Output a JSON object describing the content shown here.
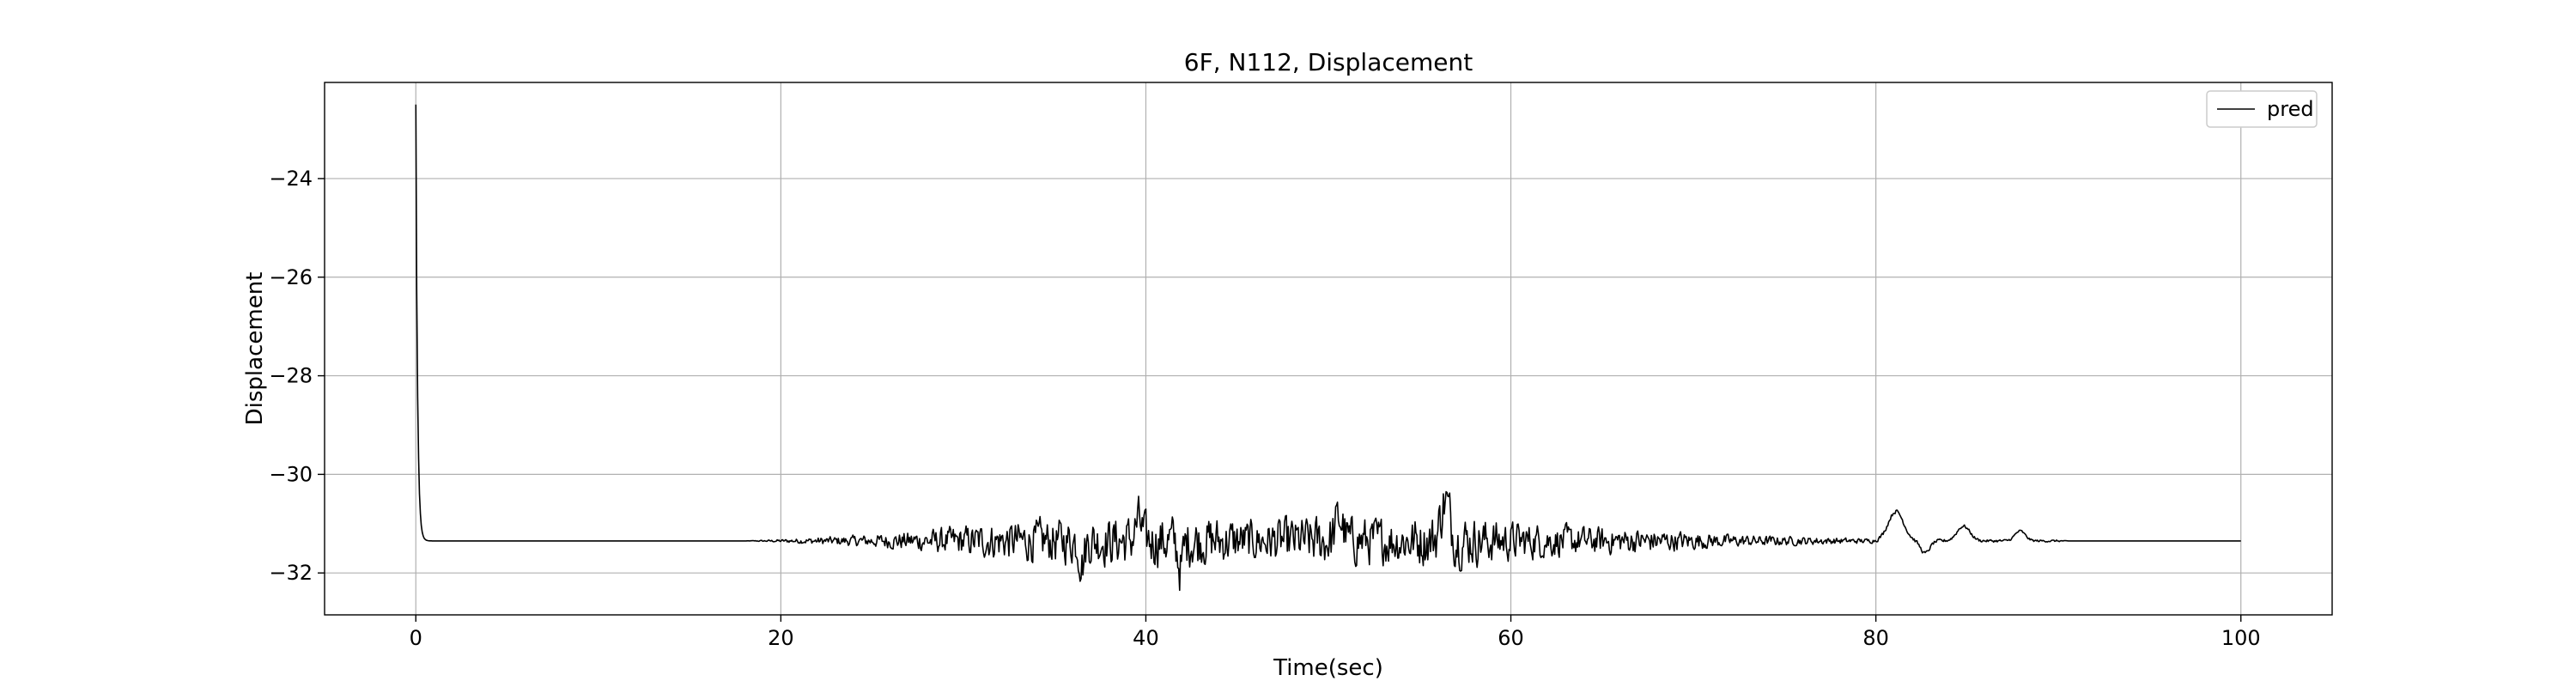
{
  "chart_data": {
    "type": "line",
    "title": "6F, N112, Displacement",
    "xlabel": "Time(sec)",
    "ylabel": "Displacement",
    "xlim": [
      -5,
      105
    ],
    "ylim": [
      -32.85,
      -22.05
    ],
    "x_ticks": [
      0,
      20,
      40,
      60,
      80,
      100
    ],
    "x_tick_labels": [
      "0",
      "20",
      "40",
      "60",
      "80",
      "100"
    ],
    "y_ticks": [
      -24,
      -26,
      -28,
      -30,
      -32
    ],
    "y_tick_labels": [
      "−24",
      "−26",
      "−28",
      "−30",
      "−32"
    ],
    "grid": true,
    "legend_position": "top-right",
    "series": [
      {
        "name": "pred",
        "color": "#000000",
        "x_start": 0,
        "x_end": 100,
        "dt": 0.05,
        "initial_value": -22.5,
        "baseline": -31.35,
        "decay_time_constant": 0.09,
        "amplitude_envelope": [
          [
            0,
            0
          ],
          [
            18,
            0
          ],
          [
            20,
            0.03
          ],
          [
            22,
            0.07
          ],
          [
            25,
            0.12
          ],
          [
            28,
            0.22
          ],
          [
            31,
            0.33
          ],
          [
            34,
            0.42
          ],
          [
            38,
            0.48
          ],
          [
            42,
            0.52
          ],
          [
            46,
            0.4
          ],
          [
            50,
            0.5
          ],
          [
            54,
            0.45
          ],
          [
            56.5,
            0.55
          ],
          [
            60,
            0.38
          ],
          [
            64,
            0.28
          ],
          [
            68,
            0.22
          ],
          [
            72,
            0.12
          ],
          [
            76,
            0.08
          ],
          [
            79,
            0.05
          ],
          [
            80.5,
            0.04
          ],
          [
            90,
            0.02
          ],
          [
            90.5,
            0
          ],
          [
            100,
            0
          ]
        ],
        "key_points": [
          [
            0,
            -22.5
          ],
          [
            0.5,
            -31.4
          ],
          [
            20,
            -31.35
          ],
          [
            36.5,
            -32.2
          ],
          [
            41.9,
            -32.3
          ],
          [
            56.4,
            -30.12
          ],
          [
            81.1,
            -30.7
          ],
          [
            82.7,
            -31.6
          ],
          [
            84.8,
            -31.0
          ],
          [
            87.9,
            -31.1
          ],
          [
            90,
            -31.35
          ],
          [
            100,
            -31.35
          ]
        ],
        "bumps": [
          {
            "center": 56.4,
            "height": 0.8,
            "width": 0.35
          },
          {
            "center": 50.6,
            "height": 0.45,
            "width": 0.3
          },
          {
            "center": 39.6,
            "height": 0.4,
            "width": 0.25
          },
          {
            "center": 41.9,
            "height": -0.55,
            "width": 0.2
          },
          {
            "center": 36.5,
            "height": -0.45,
            "width": 0.2
          },
          {
            "center": 81.1,
            "height": 0.6,
            "width": 0.6
          },
          {
            "center": 82.7,
            "height": -0.25,
            "width": 0.35
          },
          {
            "center": 84.8,
            "height": 0.3,
            "width": 0.5
          },
          {
            "center": 87.9,
            "height": 0.2,
            "width": 0.4
          }
        ]
      }
    ]
  }
}
